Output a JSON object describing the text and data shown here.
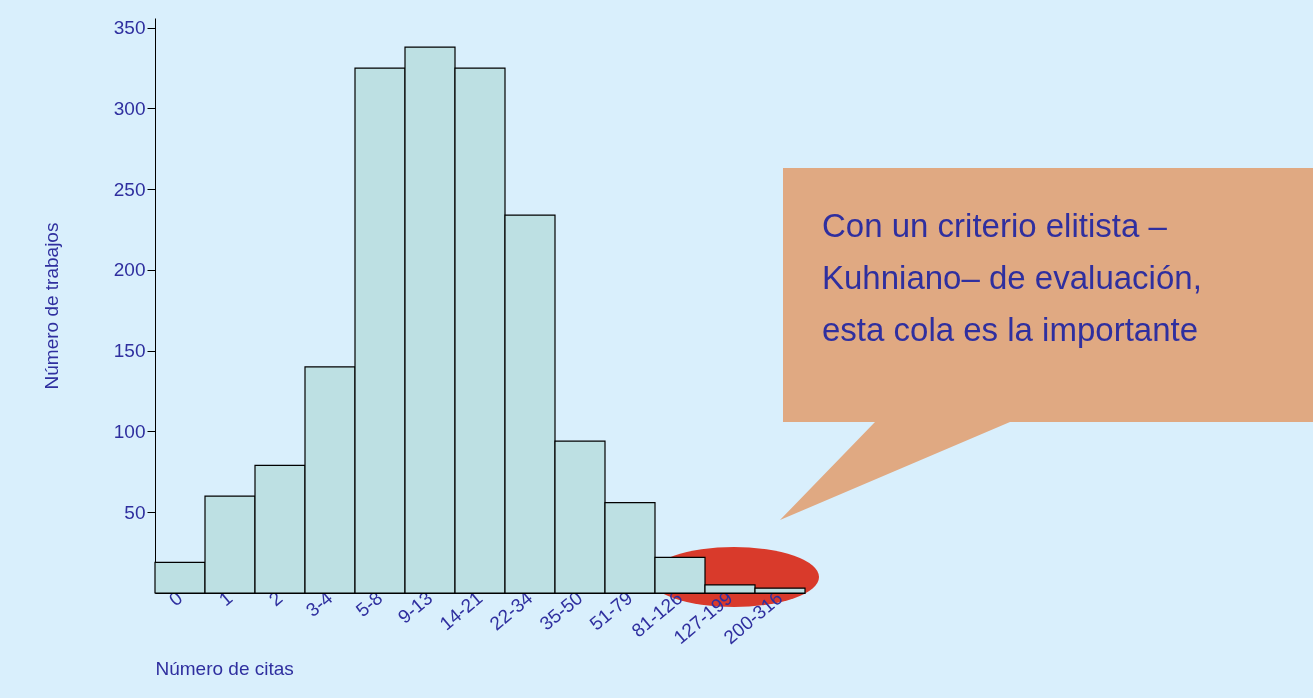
{
  "chart_data": {
    "type": "bar",
    "xlabel": "Número de citas",
    "ylabel": "Número de trabajos",
    "categories": [
      "0",
      "1",
      "2",
      "3-4",
      "5-8",
      "9-13",
      "14-21",
      "22-34",
      "35-50",
      "51-79",
      "81-126",
      "127-199",
      "200-316"
    ],
    "values": [
      19,
      60,
      79,
      140,
      325,
      338,
      325,
      234,
      94,
      56,
      22,
      5,
      3
    ],
    "color": "#bde0e3",
    "ylim": [
      0,
      356
    ],
    "yticks": [
      50,
      100,
      150,
      200,
      250,
      300,
      350
    ],
    "grid": false,
    "annotations": [
      "Con un criterio elitista –Kuhniano– de evaluación, esta cola es la importante"
    ]
  }
}
